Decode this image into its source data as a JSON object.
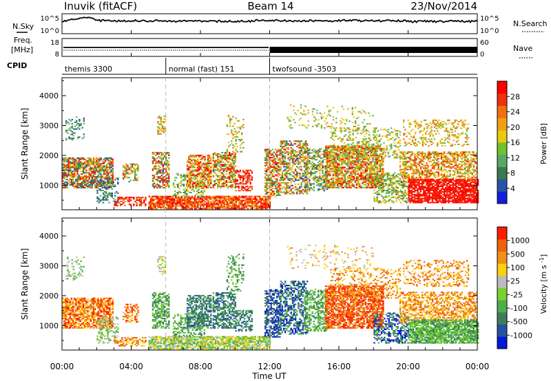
{
  "header": {
    "station": "Inuvik (fitACF)",
    "beam": "Beam 14",
    "date": "23/Nov/2014"
  },
  "noise_panel": {
    "left_label": "N.Sky",
    "right_label": "N.Search",
    "left_ticks": [
      "10^5",
      "10^0"
    ],
    "right_ticks": [
      "10^5",
      "10^0"
    ]
  },
  "freq_panel": {
    "left_label_1": "Freq.",
    "left_label_2": "[MHz]",
    "right_label": "Nave",
    "left_ticks": [
      "18",
      "8"
    ],
    "right_ticks": [
      "60",
      "0"
    ]
  },
  "cpid": {
    "label": "CPID",
    "segments": [
      {
        "name": "themis 3300",
        "start": 0,
        "end": 6
      },
      {
        "name": "normal (fast) 151",
        "start": 6,
        "end": 12
      },
      {
        "name": "twofsound -3503",
        "start": 12,
        "end": 24
      }
    ]
  },
  "chart_data": [
    {
      "type": "heatmap",
      "name": "power",
      "ylabel": "Slant Range [km]",
      "ylim": [
        180,
        4600
      ],
      "yticks": [
        "1000",
        "2000",
        "3000",
        "4000"
      ],
      "xlim": [
        0,
        24
      ],
      "colorbar": {
        "label": "Power [dB]",
        "ticks": [
          "4",
          "8",
          "12",
          "16",
          "20",
          "24",
          "28"
        ],
        "colors": [
          "#1020e0",
          "#2a52a8",
          "#3a7a50",
          "#5aa866",
          "#70c030",
          "#e8c810",
          "#f0a010",
          "#f07010",
          "#f03010",
          "#ff0000"
        ]
      }
    },
    {
      "type": "heatmap",
      "name": "velocity",
      "ylabel": "Slant Range [km]",
      "ylim": [
        180,
        4600
      ],
      "yticks": [
        "1000",
        "2000",
        "3000",
        "4000"
      ],
      "xlim": [
        0,
        24
      ],
      "colorbar": {
        "label": "Velocity [m s^-1]",
        "ticks": [
          "1000",
          "500",
          "100",
          "25",
          "-25",
          "-100",
          "-500",
          "-1000"
        ],
        "colors": [
          "#0018d8",
          "#2850a0",
          "#3c7c5c",
          "#4caf4c",
          "#7ad030",
          "#bcbcbc",
          "#ffd010",
          "#f09018",
          "#f06010",
          "#ff1a00"
        ]
      }
    }
  ],
  "x_axis": {
    "label": "Time UT",
    "ticks": [
      "00:00",
      "04:00",
      "08:00",
      "12:00",
      "16:00",
      "20:00",
      "00:00"
    ]
  }
}
